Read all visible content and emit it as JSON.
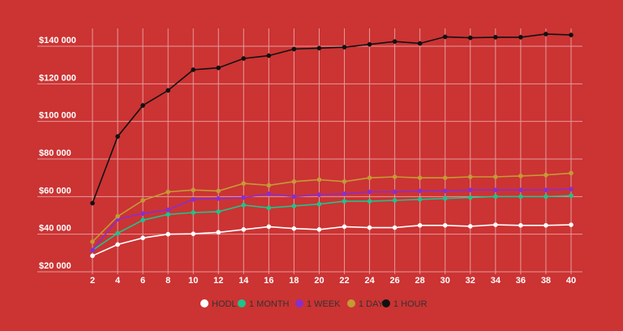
{
  "chart_data": {
    "type": "line",
    "title": "",
    "xlabel": "",
    "ylabel": "",
    "x": [
      2,
      4,
      6,
      8,
      10,
      12,
      14,
      16,
      18,
      20,
      22,
      24,
      26,
      28,
      30,
      32,
      34,
      36,
      38,
      40
    ],
    "xlim": [
      2,
      40
    ],
    "ylim": [
      20000,
      150000
    ],
    "yticks": [
      20000,
      40000,
      60000,
      80000,
      100000,
      120000,
      140000
    ],
    "ytick_labels": [
      "$20 000",
      "$40 000",
      "$60 000",
      "$80 000",
      "$100 000",
      "$120 000",
      "$140 000"
    ],
    "grid": true,
    "legend_position": "bottom-center",
    "series": [
      {
        "name": "HODL",
        "color": "#ffffff",
        "values": [
          28500,
          34500,
          38000,
          40000,
          40200,
          41000,
          42500,
          44000,
          43000,
          42500,
          44000,
          43500,
          43500,
          44700,
          44700,
          44200,
          45000,
          44700,
          44700,
          45000
        ]
      },
      {
        "name": "1 MONTH",
        "color": "#1dc48c",
        "values": [
          31500,
          40500,
          47500,
          50500,
          51500,
          52000,
          55500,
          54000,
          55000,
          56000,
          57500,
          57500,
          58000,
          58500,
          59000,
          59500,
          60000,
          60000,
          60000,
          60500
        ]
      },
      {
        "name": "1 WEEK",
        "color": "#8a2ecc",
        "values": [
          31500,
          48000,
          51000,
          53000,
          58500,
          59000,
          59500,
          61500,
          60000,
          61000,
          61500,
          62500,
          62500,
          63000,
          63000,
          63500,
          63500,
          63500,
          63500,
          64000
        ]
      },
      {
        "name": "1 DAY",
        "color": "#c49a35",
        "values": [
          36000,
          49500,
          58000,
          62500,
          63500,
          63000,
          67000,
          66000,
          68000,
          69000,
          68000,
          70000,
          70500,
          70000,
          70000,
          70500,
          70500,
          71000,
          71500,
          72500
        ]
      },
      {
        "name": "1 HOUR",
        "color": "#111111",
        "values": [
          56500,
          92000,
          108500,
          116500,
          127500,
          128500,
          133500,
          135000,
          138500,
          139000,
          139500,
          141000,
          142500,
          141500,
          145000,
          144500,
          144800,
          144800,
          146500,
          146000
        ]
      }
    ]
  }
}
